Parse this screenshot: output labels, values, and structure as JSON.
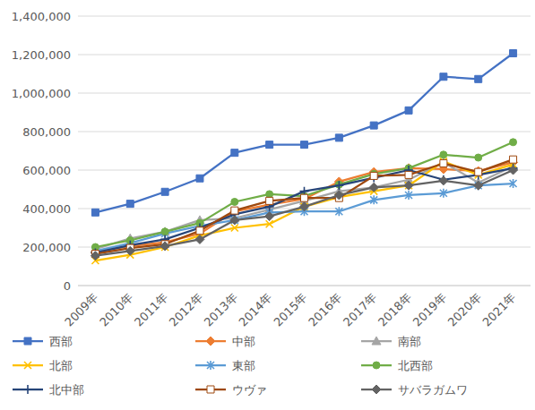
{
  "chart_data": {
    "type": "line",
    "categories": [
      "2009年",
      "2010年",
      "2011年",
      "2012年",
      "2013年",
      "2014年",
      "2015年",
      "2016年",
      "2017年",
      "2018年",
      "2019年",
      "2020年",
      "2021年"
    ],
    "series": [
      {
        "name": "西部",
        "color": "#4472c4",
        "marker": "square",
        "values": [
          380000,
          425000,
          487000,
          557000,
          690000,
          732000,
          732000,
          768000,
          832000,
          910000,
          1085000,
          1073000,
          1207000
        ]
      },
      {
        "name": "中部",
        "color": "#ed7d31",
        "marker": "diamond",
        "values": [
          175000,
          205000,
          225000,
          270000,
          385000,
          420000,
          450000,
          540000,
          590000,
          610000,
          605000,
          595000,
          640000
        ]
      },
      {
        "name": "南部",
        "color": "#a5a5a5",
        "marker": "triangle",
        "values": [
          190000,
          245000,
          280000,
          340000,
          350000,
          395000,
          440000,
          490000,
          510000,
          550000,
          640000,
          535000,
          620000
        ]
      },
      {
        "name": "北部",
        "color": "#ffc000",
        "marker": "x",
        "values": [
          130000,
          160000,
          200000,
          260000,
          300000,
          320000,
          410000,
          460000,
          490000,
          520000,
          645000,
          575000,
          630000
        ]
      },
      {
        "name": "東部",
        "color": "#5b9bd5",
        "marker": "star",
        "values": [
          180000,
          220000,
          270000,
          310000,
          340000,
          380000,
          385000,
          385000,
          445000,
          470000,
          480000,
          520000,
          530000
        ]
      },
      {
        "name": "北西部",
        "color": "#70ad47",
        "marker": "circle",
        "values": [
          200000,
          235000,
          280000,
          325000,
          435000,
          475000,
          465000,
          525000,
          580000,
          610000,
          680000,
          665000,
          745000
        ]
      },
      {
        "name": "北中部",
        "color": "#264478",
        "marker": "plus",
        "values": [
          170000,
          210000,
          240000,
          300000,
          370000,
          410000,
          490000,
          520000,
          560000,
          600000,
          550000,
          575000,
          610000
        ]
      },
      {
        "name": "ウヴァ",
        "color": "#9e480e",
        "marker": "open-square",
        "values": [
          165000,
          195000,
          215000,
          285000,
          390000,
          440000,
          455000,
          455000,
          570000,
          575000,
          635000,
          590000,
          655000
        ]
      },
      {
        "name": "サバラガムワ",
        "color": "#636363",
        "marker": "diamond",
        "values": [
          155000,
          180000,
          205000,
          240000,
          340000,
          360000,
          410000,
          470000,
          510000,
          520000,
          545000,
          520000,
          600000
        ]
      }
    ],
    "ylim": [
      0,
      1400000
    ],
    "yticks": [
      0,
      {
        "value": 200000,
        "label": "200,000"
      },
      {
        "value": 400000,
        "label": "400,000"
      },
      {
        "value": 600000,
        "label": "600,000"
      },
      {
        "value": 800000,
        "label": "800,000"
      },
      {
        "value": 1000000,
        "label": "1,000,000"
      },
      {
        "value": 1200000,
        "label": "1,200,000"
      },
      {
        "value": 1400000,
        "label": "1,400,000"
      }
    ],
    "grid": true,
    "legend": "bottom"
  }
}
